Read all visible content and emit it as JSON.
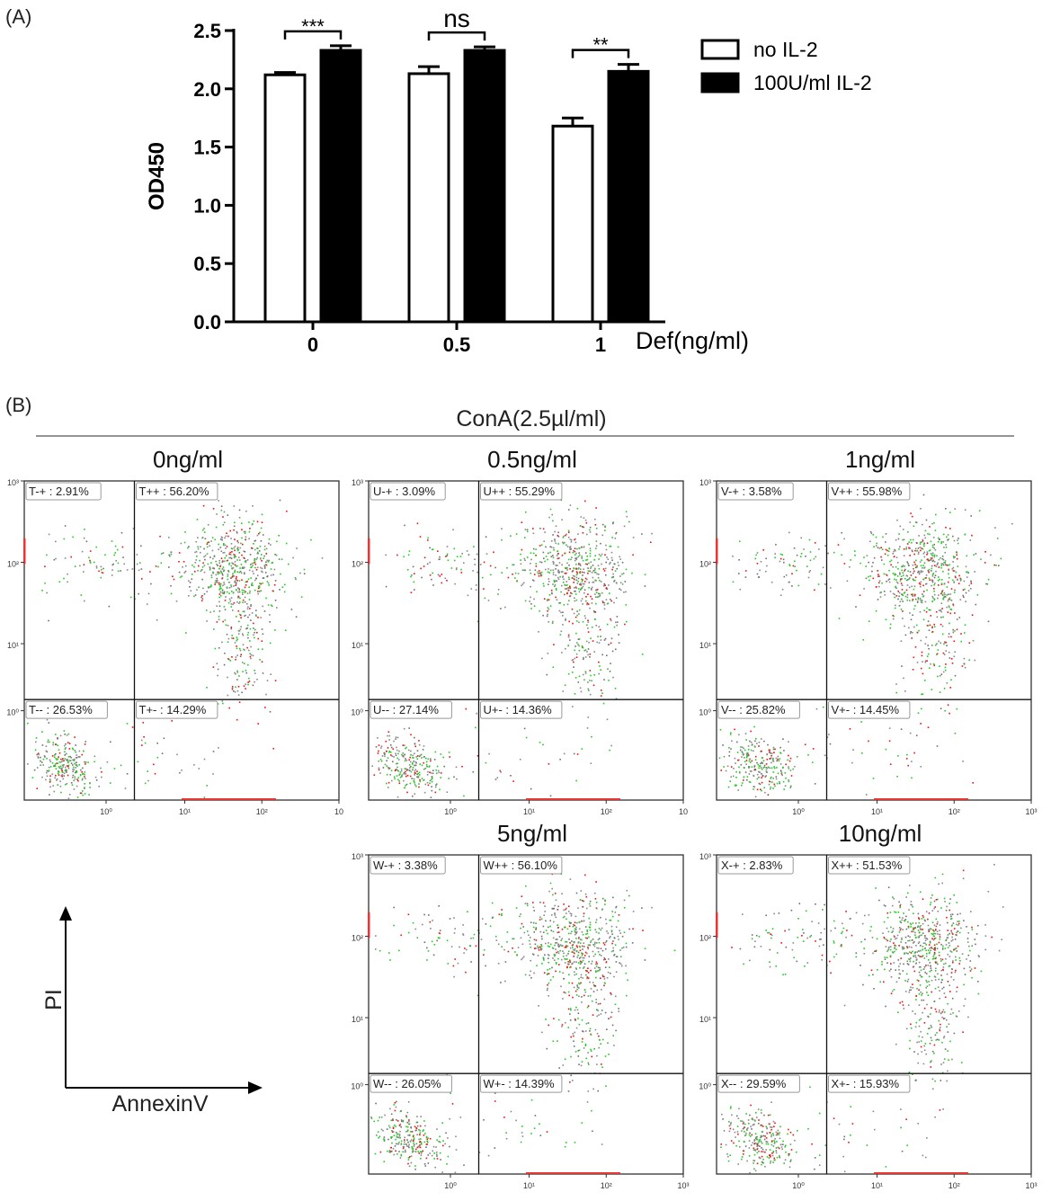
{
  "panel_a_label": "(A)",
  "panel_b_label": "(B)",
  "chart_data": [
    {
      "type": "bar",
      "categories": [
        "0",
        "0.5",
        "1"
      ],
      "series": [
        {
          "name": "no IL-2",
          "values": [
            2.12,
            2.13,
            1.68
          ],
          "errors": [
            0.02,
            0.06,
            0.07
          ],
          "color": "#ffffff"
        },
        {
          "name": "100U/ml IL-2",
          "values": [
            2.33,
            2.33,
            2.15
          ],
          "errors": [
            0.04,
            0.03,
            0.06
          ],
          "color": "#000000"
        }
      ],
      "significance": [
        "***",
        "ns",
        "**"
      ],
      "title": "",
      "xlabel": "Def(ng/ml)",
      "ylabel": "OD450",
      "ylim": [
        0,
        2.5
      ],
      "yticks": [
        "0.0",
        "0.5",
        "1.0",
        "1.5",
        "2.0",
        "2.5"
      ],
      "legend": "top-right",
      "grid": false
    },
    {
      "type": "scatter",
      "title": "ConA(2.5µl/ml)",
      "xlabel": "AnnexinV",
      "ylabel": "PI",
      "scale": "log",
      "axis_ticks": [
        "10⁰",
        "10¹",
        "10²",
        "10³"
      ],
      "panels": [
        {
          "label": "0ng/ml",
          "gate": "T",
          "quadrants": {
            "ul": "T-+ : 2.91%",
            "ur": "T++ : 56.20%",
            "ll": "T-- : 26.53%",
            "lr": "T+- : 14.29%"
          },
          "xtick_last": "10"
        },
        {
          "label": "0.5ng/ml",
          "gate": "U",
          "quadrants": {
            "ul": "U-+ : 3.09%",
            "ur": "U++ : 55.29%",
            "ll": "U-- : 27.14%",
            "lr": "U+- : 14.36%"
          },
          "xtick_last": "10"
        },
        {
          "label": "1ng/ml",
          "gate": "V",
          "quadrants": {
            "ul": "V-+ : 3.58%",
            "ur": "V++ : 55.98%",
            "ll": "V-- : 25.82%",
            "lr": "V+- : 14.45%"
          },
          "xtick_last": "10³"
        },
        {
          "label": "5ng/ml",
          "gate": "W",
          "quadrants": {
            "ul": "W-+ : 3.38%",
            "ur": "W++ : 56.10%",
            "ll": "W-- : 26.05%",
            "lr": "W+- : 14.39%"
          },
          "xtick_last": "10³"
        },
        {
          "label": "10ng/ml",
          "gate": "X",
          "quadrants": {
            "ul": "X-+ : 2.83%",
            "ur": "X++ : 51.53%",
            "ll": "X-- : 29.59%",
            "lr": "X+- : 15.93%"
          },
          "xtick_last": "10³"
        }
      ]
    }
  ]
}
